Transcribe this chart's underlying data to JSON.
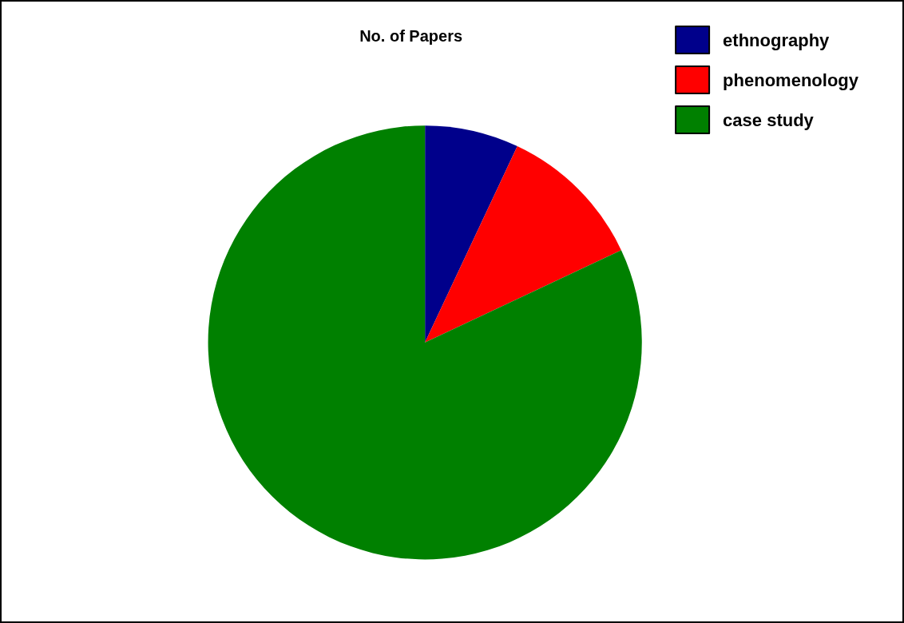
{
  "chart_data": {
    "type": "pie",
    "title": "No. of Papers",
    "categories": [
      "ethnography",
      "phenomenology",
      "case study"
    ],
    "values": [
      7,
      11,
      82
    ],
    "colors": [
      "#00008b",
      "#ff0000",
      "#008000"
    ],
    "legend": "top right"
  }
}
